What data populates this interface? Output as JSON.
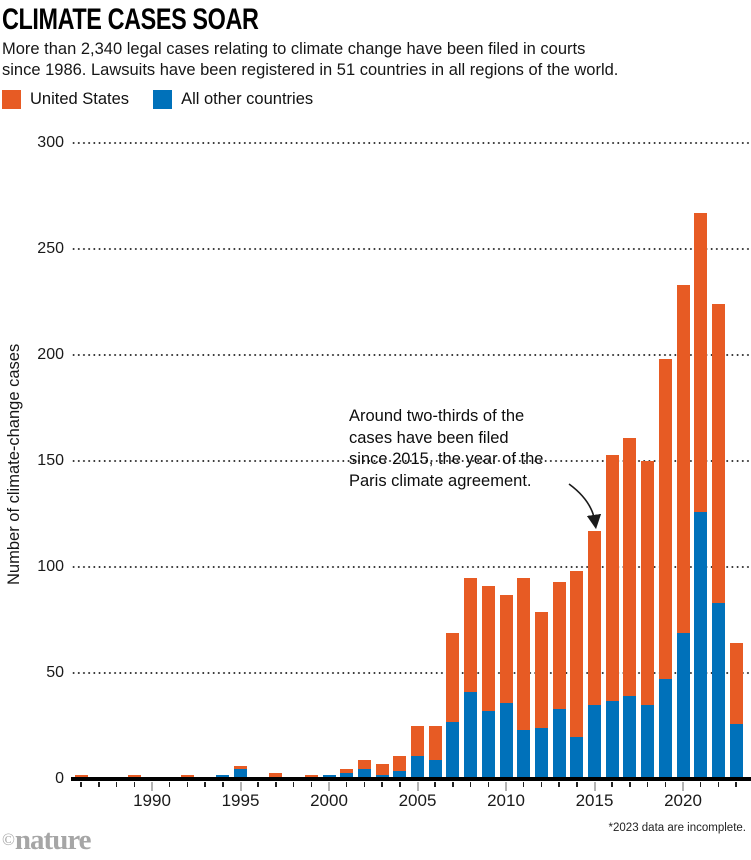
{
  "header": {
    "title": "CLIMATE CASES SOAR",
    "subtitle_lines": [
      "More than 2,340 legal cases relating to climate change have been filed in courts",
      "since 1986. Lawsuits have been registered in 51 countries in all regions of the world."
    ]
  },
  "legend": {
    "items": [
      {
        "label": "United States",
        "color": "#E75B24"
      },
      {
        "label": "All other countries",
        "color": "#0071BA"
      }
    ]
  },
  "annotation": {
    "lines": [
      "Around two-thirds of the",
      "cases have been filed",
      "since 2015, the year of the",
      "Paris climate agreement."
    ]
  },
  "footnote": "*2023 data are incomplete.",
  "brand": {
    "copyright": "©",
    "name": "nature"
  },
  "chart_data": {
    "type": "bar",
    "stacked": true,
    "title": "CLIMATE CASES SOAR",
    "ylabel": "Number of climate-change cases",
    "xlabel": "",
    "ylim": [
      0,
      300
    ],
    "y_ticks": [
      0,
      50,
      100,
      150,
      200,
      250,
      300
    ],
    "x_tick_labels": [
      "1990",
      "1995",
      "2000",
      "2005",
      "2010",
      "2015",
      "2020"
    ],
    "grid": "horizontal-dotted",
    "legend_position": "top-left",
    "years": [
      1986,
      1987,
      1988,
      1989,
      1990,
      1991,
      1992,
      1993,
      1994,
      1995,
      1996,
      1997,
      1998,
      1999,
      2000,
      2001,
      2002,
      2003,
      2004,
      2005,
      2006,
      2007,
      2008,
      2009,
      2010,
      2011,
      2012,
      2013,
      2014,
      2015,
      2016,
      2017,
      2018,
      2019,
      2020,
      2021,
      2022,
      2023
    ],
    "series": [
      {
        "name": "United States",
        "color": "#E75B24",
        "stack": "top",
        "values": [
          1,
          0,
          0,
          1,
          0,
          0,
          1,
          0,
          0,
          1,
          0,
          2,
          0,
          1,
          0,
          2,
          4,
          5,
          7,
          14,
          16,
          42,
          54,
          59,
          51,
          72,
          55,
          60,
          78,
          82,
          116,
          122,
          115,
          151,
          164,
          141,
          141,
          38
        ]
      },
      {
        "name": "All other countries",
        "color": "#0071BA",
        "stack": "bottom",
        "values": [
          0,
          0,
          0,
          0,
          0,
          0,
          0,
          0,
          1,
          4,
          0,
          0,
          0,
          0,
          1,
          2,
          4,
          1,
          3,
          10,
          8,
          26,
          40,
          31,
          35,
          22,
          23,
          32,
          19,
          34,
          36,
          38,
          34,
          46,
          68,
          125,
          82,
          25
        ]
      }
    ]
  }
}
